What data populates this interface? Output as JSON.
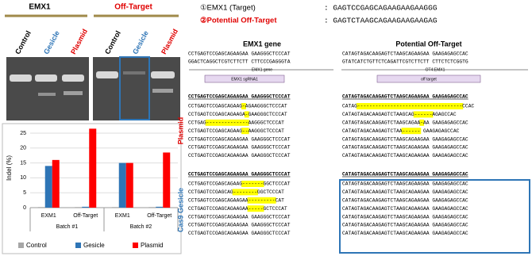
{
  "gel": {
    "groups": [
      "EMX1",
      "Off-Target"
    ],
    "lanes": [
      "Control",
      "Gesicle",
      "Plasmid",
      "Control",
      "Gesicle",
      "Plasmid"
    ]
  },
  "chart_data": {
    "type": "bar",
    "ylabel": "Indel (%)",
    "categories": [
      "EXM1",
      "Off-Target",
      "EXM1",
      "Off-Target"
    ],
    "group_labels": [
      "Batch #1",
      "Batch #2"
    ],
    "series": [
      {
        "name": "Control",
        "color": "#a6a6a6",
        "values": [
          0.2,
          0.2,
          0.2,
          0.2
        ]
      },
      {
        "name": "Gesicle",
        "color": "#2e75b6",
        "values": [
          14,
          0.3,
          15,
          0.3
        ]
      },
      {
        "name": "Plasmid",
        "color": "#ff0000",
        "values": [
          16,
          26.5,
          15,
          18.5
        ]
      }
    ],
    "ylim": [
      0,
      25
    ],
    "yticks": [
      0,
      5,
      10,
      15,
      20,
      25
    ],
    "grid": true,
    "legend": "bottom"
  },
  "alignment": {
    "target_label": "①EMX1 (Target)",
    "target_seq": ": GAGTCCGAGCAGAAGAAGAAGGG",
    "offtarget_label": "②Potential Off-Target",
    "offtarget_seq": ": GAGTCTAAGCAGAAGAAGAAGAG",
    "left_title": "EMX1 gene",
    "right_title": "Potential Off-Target",
    "left_ref": [
      "CCTGAGTCCGAGCAGAAGAA GAAGGGCTCCCAT",
      "GGACTCAGGCTCGTCTTCTT CTTCCCGAGGGTA"
    ],
    "right_ref": [
      "CATAGTAGACAAGAGTCTAAGCAGAAGAA GAAGAGAGCCAC",
      "GTATCATCTGTTCTCAGATTCGTCTTCTT CTTCTCTCGGTG"
    ],
    "left_gene": "EMX1 gene",
    "left_guide": "EMX1 sgRNA1",
    "right_gene": "OT4:EMX1",
    "right_guide": "off target",
    "plasmid_label": "Plasmid",
    "gesicle_label": "Cas9 Gesicle",
    "plasmid_left_header": "CCTGAGTCCGAGCAGAAGAA GAAGGGCTCCCAT",
    "plasmid_right_header": "CATAGTAGACAAGAGTCTAAGCAGAAGAA GAAGAGAGCCAC",
    "plasmid_left": [
      "CCTGAGTCCGAGCAGAAG-AGAAGGGCTCCCAT",
      "CCTGAGTCCGAGCAGAAGA-GAAGGGCTCCCAT",
      "CCTGAG--------------AAGGGCTCCCAT",
      "CCTGAGTCCGAGCAGAAG--AAGGGCTCCCAT",
      "CCTGAGTCCGAGCAGAAGAA GAAGGGCTCCCAT",
      "CCTGAGTCCGAGCAGAAGAA GAAGGGCTCCCAT",
      "CCTGAGTCCGAGCAGAAGAA GAAGGGCTCCCAT"
    ],
    "plasmid_right": [
      "CATAG-----------------------------------CCAC",
      "CATAGTAGACAAGAGTCTAAGCAG------AGAGCCAC",
      "CATAGTAGACAAGAGTCTAAGCAGAA-AA GAAGAGAGCCAC",
      "CATAGTAGACAAGAGTCTAA------ GAAGAGAGCCAC",
      "CATAGTAGACAAGAGTCTAAGCAGAAGAA GAAGAGAGCCAC",
      "CATAGTAGACAAGAGTCTAAGCAGAAGAA GAAGAGAGCCAC",
      "CATAGTAGACAAGAGTCTAAGCAGAAGAA GAAGAGAGCCAC"
    ],
    "gesicle_left_header": "CCTGAGTCCGAGCAGAAGAA GAAGGGCTCCCAT",
    "gesicle_right_header": "CATAGTAGACAAGAGTCTAAGCAGAAGAA GAAGAGAGCCAC",
    "gesicle_left": [
      "CCTGAGTCCGAGCAGAAG-------GGCTCCCAT",
      "CCTGAGTCCGAGCAG--------GGCTCCCAT",
      "CCTGAGTCCGAGCAGAAGAA---------CAT",
      "CCTGAGTCCGAGCAGAAGAA-----GCTCCCAT",
      "CCTGAGTCCGAGCAGAAGAA GAAGGGCTCCCAT",
      "CCTGAGTCCGAGCAGAAGAA GAAGGGCTCCCAT",
      "CCTGAGTCCGAGCAGAAGAA GAAGGGCTCCCAT"
    ],
    "gesicle_right": [
      "CATAGTAGACAAGAGTCTAAGCAGAAGAA GAAGAGAGCCAC",
      "CATAGTAGACAAGAGTCTAAGCAGAAGAA GAAGAGAGCCAC",
      "CATAGTAGACAAGAGTCTAAGCAGAAGAA GAAGAGAGCCAC",
      "CATAGTAGACAAGAGTCTAAGCAGAAGAA GAAGAGAGCCAC",
      "CATAGTAGACAAGAGTCTAAGCAGAAGAA GAAGAGAGCCAC",
      "CATAGTAGACAAGAGTCTAAGCAGAAGAA GAAGAGAGCCAC",
      "CATAGTAGACAAGAGTCTAAGCAGAAGAA GAAGAGAGCCAC"
    ]
  }
}
